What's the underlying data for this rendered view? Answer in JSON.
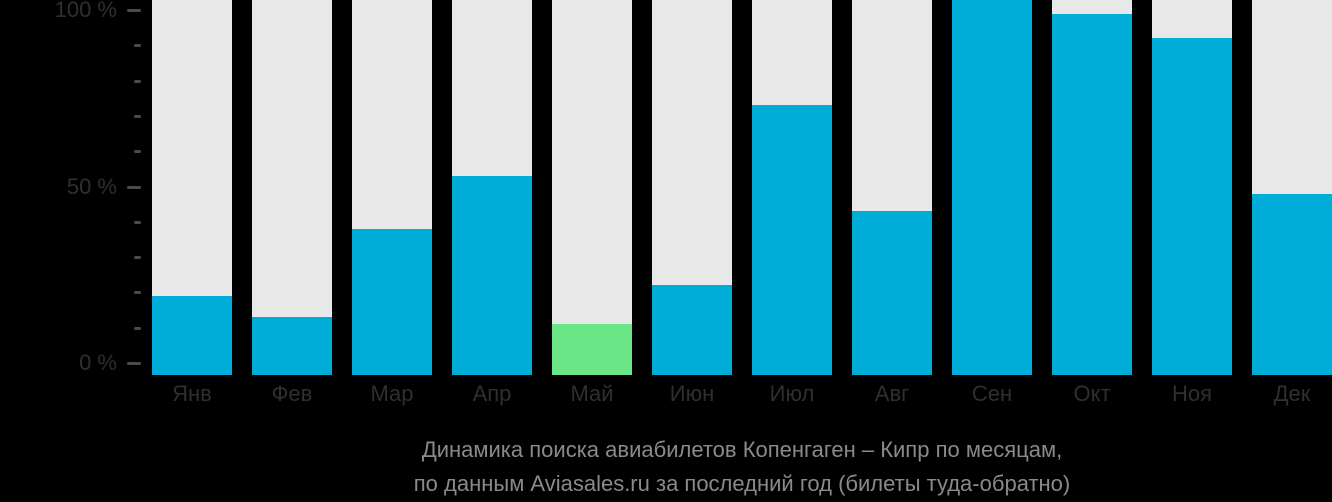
{
  "title": {
    "line1": "Динамика поиска авиабилетов Копенгаген – Кипр по месяцам,",
    "line2": "по данным Aviasales.ru за последний год (билеты туда-обратно)"
  },
  "chart_data": {
    "type": "bar",
    "title": "Динамика поиска авиабилетов Копенгаген – Кипр по месяцам, по данным Aviasales.ru за последний год (билеты туда-обратно)",
    "categories": [
      "Янв",
      "Фев",
      "Мар",
      "Апр",
      "Май",
      "Июн",
      "Июл",
      "Авг",
      "Сен",
      "Окт",
      "Ноя",
      "Дек"
    ],
    "values": [
      19,
      13,
      38,
      53,
      11,
      22,
      73,
      43,
      103,
      99,
      92,
      48
    ],
    "values_unit": "percent of peak search interest",
    "highlight_index": 4,
    "highlight_meaning": "month with lowest search share, shown in green",
    "xlabel": "",
    "ylabel": "",
    "ylim": [
      0,
      100
    ],
    "y_ticks_major": [
      {
        "value": 0,
        "label": "0 %"
      },
      {
        "value": 50,
        "label": "50 %"
      },
      {
        "value": 100,
        "label": "100 %"
      }
    ],
    "y_minor_tick_values": [
      10,
      20,
      30,
      40,
      60,
      70,
      80,
      90
    ],
    "grid": false,
    "legend": false,
    "note": "September bar is the peak and extends slightly above the 100 % tick; each bar sits on a full-height light-gray track",
    "colors": {
      "bar_fill": "#00ADD8",
      "bar_highlight": "#6BE788",
      "bar_track": "#E8E8E8",
      "background": "#000000",
      "axis_text": "#2F2F2F",
      "tick_mark": "#4A4A4A",
      "title_text": "#8A8A8A"
    }
  }
}
